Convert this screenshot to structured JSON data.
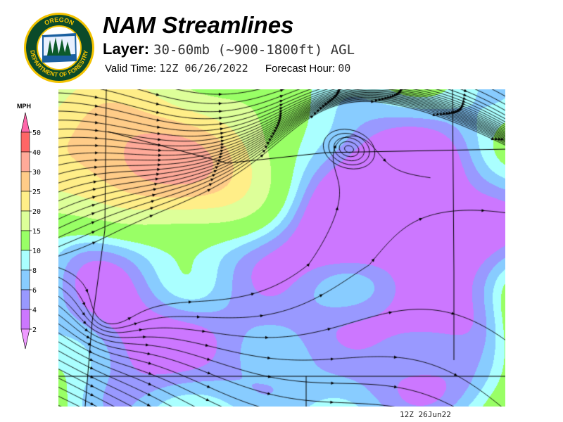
{
  "logo": {
    "top_text": "OREGON",
    "bottom_text": "DEPARTMENT OF FORESTRY",
    "colors": {
      "ring": "#0b4a2a",
      "rim": "#f2c200"
    }
  },
  "header": {
    "title": "NAM Streamlines",
    "layer_label": "Layer:",
    "layer_value": "30-60mb (~900-1800ft) AGL",
    "valid_label": "Valid Time:",
    "valid_value": "12Z 06/26/2022",
    "forecast_label": "Forecast Hour:",
    "forecast_value": "00"
  },
  "colorbar": {
    "unit": "MPH",
    "levels": [
      "50",
      "40",
      "30",
      "25",
      "20",
      "15",
      "10",
      "8",
      "6",
      "4",
      "2"
    ],
    "colors": [
      "#ff66aa",
      "#ff6666",
      "#ffaa99",
      "#ffcc88",
      "#ffee88",
      "#ddff99",
      "#99ff66",
      "#aaffff",
      "#88ccff",
      "#9999ff",
      "#cc77ff",
      "#ee99ff"
    ]
  },
  "map": {
    "streamline_color": "#000000"
  },
  "footer": {
    "timestamp": "12Z 26Jun22"
  }
}
